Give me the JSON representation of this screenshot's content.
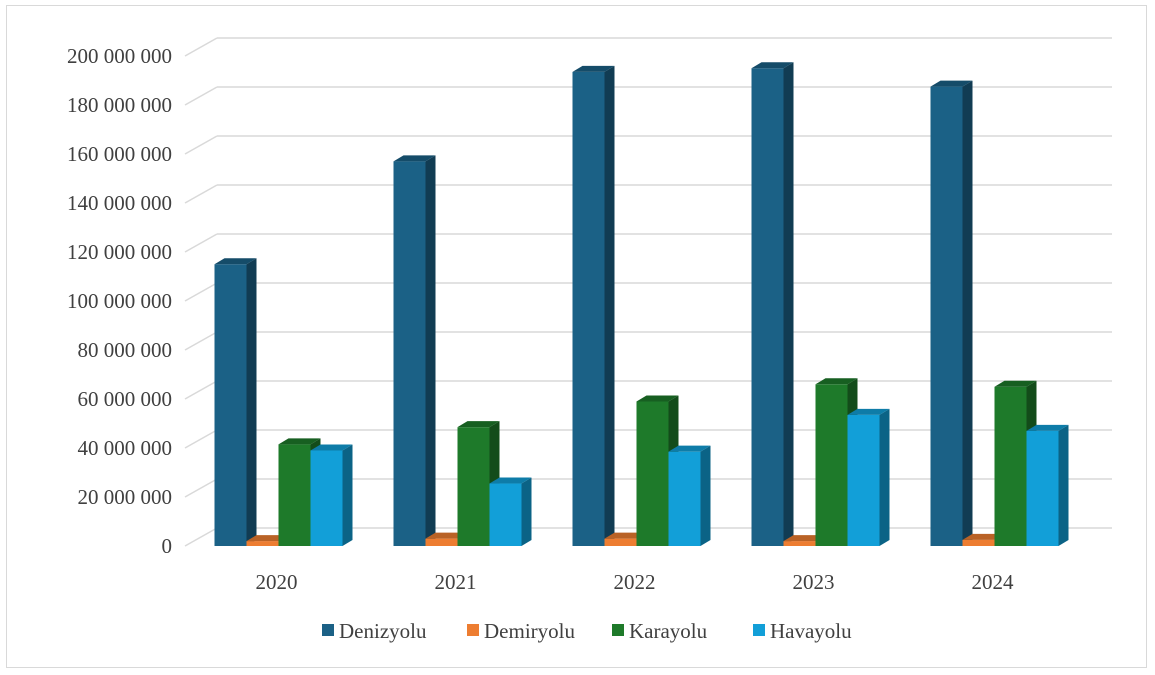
{
  "chart_data": {
    "type": "bar",
    "style": "3d-clustered-column",
    "categories": [
      "2020",
      "2021",
      "2022",
      "2023",
      "2024"
    ],
    "series": [
      {
        "name": "Denizyolu",
        "color": "#1b6186",
        "values": [
          115000000,
          157000000,
          193500000,
          195000000,
          187500000
        ]
      },
      {
        "name": "Demiryolu",
        "color": "#ed7d31",
        "values": [
          2000000,
          3000000,
          3000000,
          2000000,
          2500000
        ]
      },
      {
        "name": "Karayolu",
        "color": "#1e7a2a",
        "values": [
          41500000,
          48500000,
          59000000,
          66000000,
          65000000
        ]
      },
      {
        "name": "Havayolu",
        "color": "#129fd8",
        "values": [
          39000000,
          25500000,
          38500000,
          53500000,
          47000000
        ]
      }
    ],
    "ylim": [
      0,
      200000000
    ],
    "yticks": [
      "0",
      "20 000 000",
      "40 000 000",
      "60 000 000",
      "80 000 000",
      "100 000 000",
      "120 000 000",
      "140 000 000",
      "160 000 000",
      "180 000 000",
      "200 000 000"
    ],
    "ytick_step": 20000000,
    "grid": true,
    "legend_position": "bottom",
    "title": "",
    "xlabel": "",
    "ylabel": ""
  }
}
